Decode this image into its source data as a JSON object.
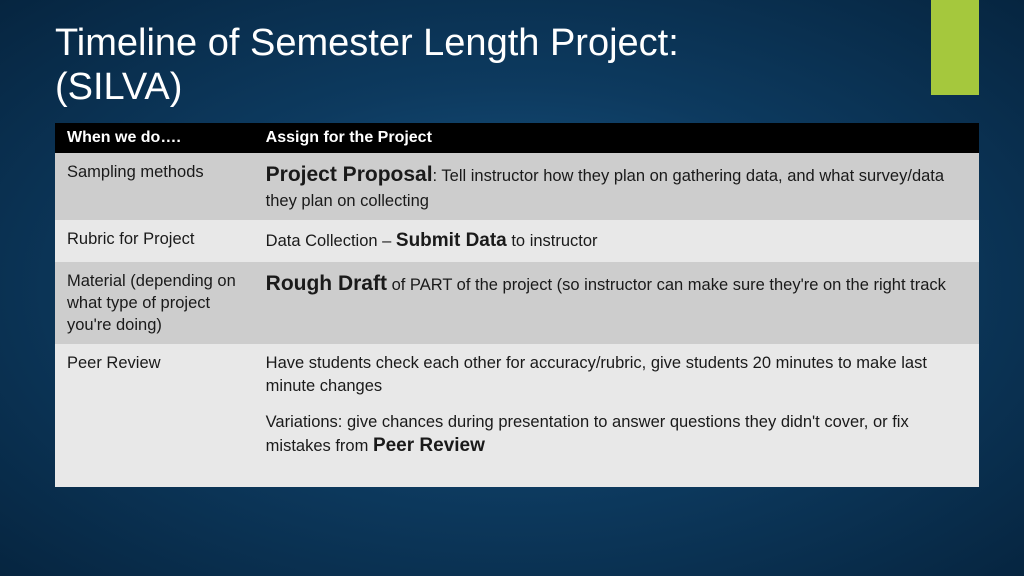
{
  "accent_color": "#a5c83d",
  "background_gradient": {
    "center": "#1a5a8a",
    "mid": "#0d3a5f",
    "edge": "#062540"
  },
  "title_line1": "Timeline of Semester Length Project:",
  "title_line2": "(SILVA)",
  "table": {
    "header_bg": "#000000",
    "header_fg": "#ffffff",
    "row_alt1_bg": "#cdcdcd",
    "row_alt2_bg": "#e8e8e8",
    "columns": [
      "When we do….",
      "Assign for the Project"
    ],
    "rows": [
      {
        "when": "Sampling methods",
        "assign_bold": "Project Proposal",
        "assign_rest": ":  Tell instructor how they plan on gathering data, and what survey/data they plan on collecting"
      },
      {
        "when": "Rubric for Project",
        "assign_pre": "Data Collection – ",
        "assign_bold": "Submit Data",
        "assign_post": " to instructor"
      },
      {
        "when": "Material (depending on what type of project you're doing)",
        "assign_bold": "Rough Draft",
        "assign_rest": " of PART of the project (so instructor can make sure they're on the right track"
      },
      {
        "when": "Peer Review",
        "assign_p1": "Have students check each other for accuracy/rubric, give students 20 minutes to make last minute changes",
        "assign_p2_pre": "Variations:  give chances during presentation to answer questions they didn't cover, or fix mistakes from ",
        "assign_p2_bold": "Peer Review"
      }
    ]
  }
}
